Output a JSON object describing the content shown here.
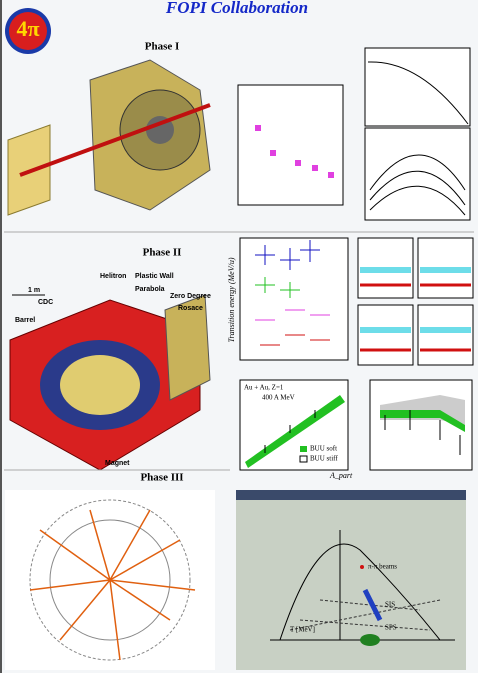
{
  "header": {
    "title": "FOPI Collaboration"
  },
  "phases": [
    {
      "label": "Phase I"
    },
    {
      "label": "Phase II"
    },
    {
      "label": "Phase III"
    }
  ],
  "detector": {
    "scale": "1 m",
    "labels": [
      "Helitron",
      "Plastic Wall",
      "Parabola",
      "Zero Degree",
      "Rosace",
      "Barrel",
      "CDC",
      "Magnet"
    ]
  },
  "plots": {
    "transition_energy": {
      "y_label": "Transition energy (MeV/u)"
    },
    "excitation": {
      "legend": [
        "Au + Au, Z=1",
        "400 A MeV",
        "BUU soft",
        "BUU stiff"
      ],
      "x_label": "A_part"
    },
    "phase_diagram": {
      "x_label": "T [MeV]",
      "annotations": [
        "π-π beams",
        "SIS",
        "SPS"
      ]
    }
  }
}
